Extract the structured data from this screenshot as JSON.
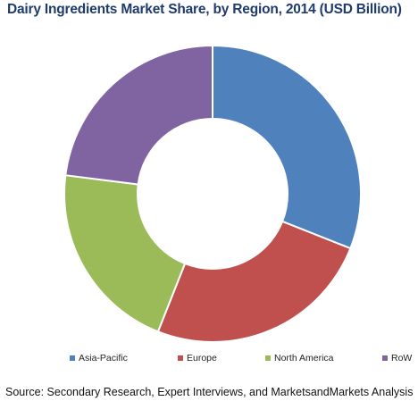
{
  "chart_data": {
    "type": "pie",
    "donut": true,
    "title": "Dairy Ingredients Market Share, by Region, 2014 (USD Billion)",
    "categories": [
      "Asia-Pacific",
      "Europe",
      "North America",
      "RoW"
    ],
    "values": [
      31,
      25,
      21,
      23
    ],
    "colors": [
      "#4F81BD",
      "#C0504D",
      "#9BBB59",
      "#8064A2"
    ],
    "legend_position": "bottom",
    "source": "Source: Secondary Research, Expert Interviews, and MarketsandMarkets Analysis"
  }
}
